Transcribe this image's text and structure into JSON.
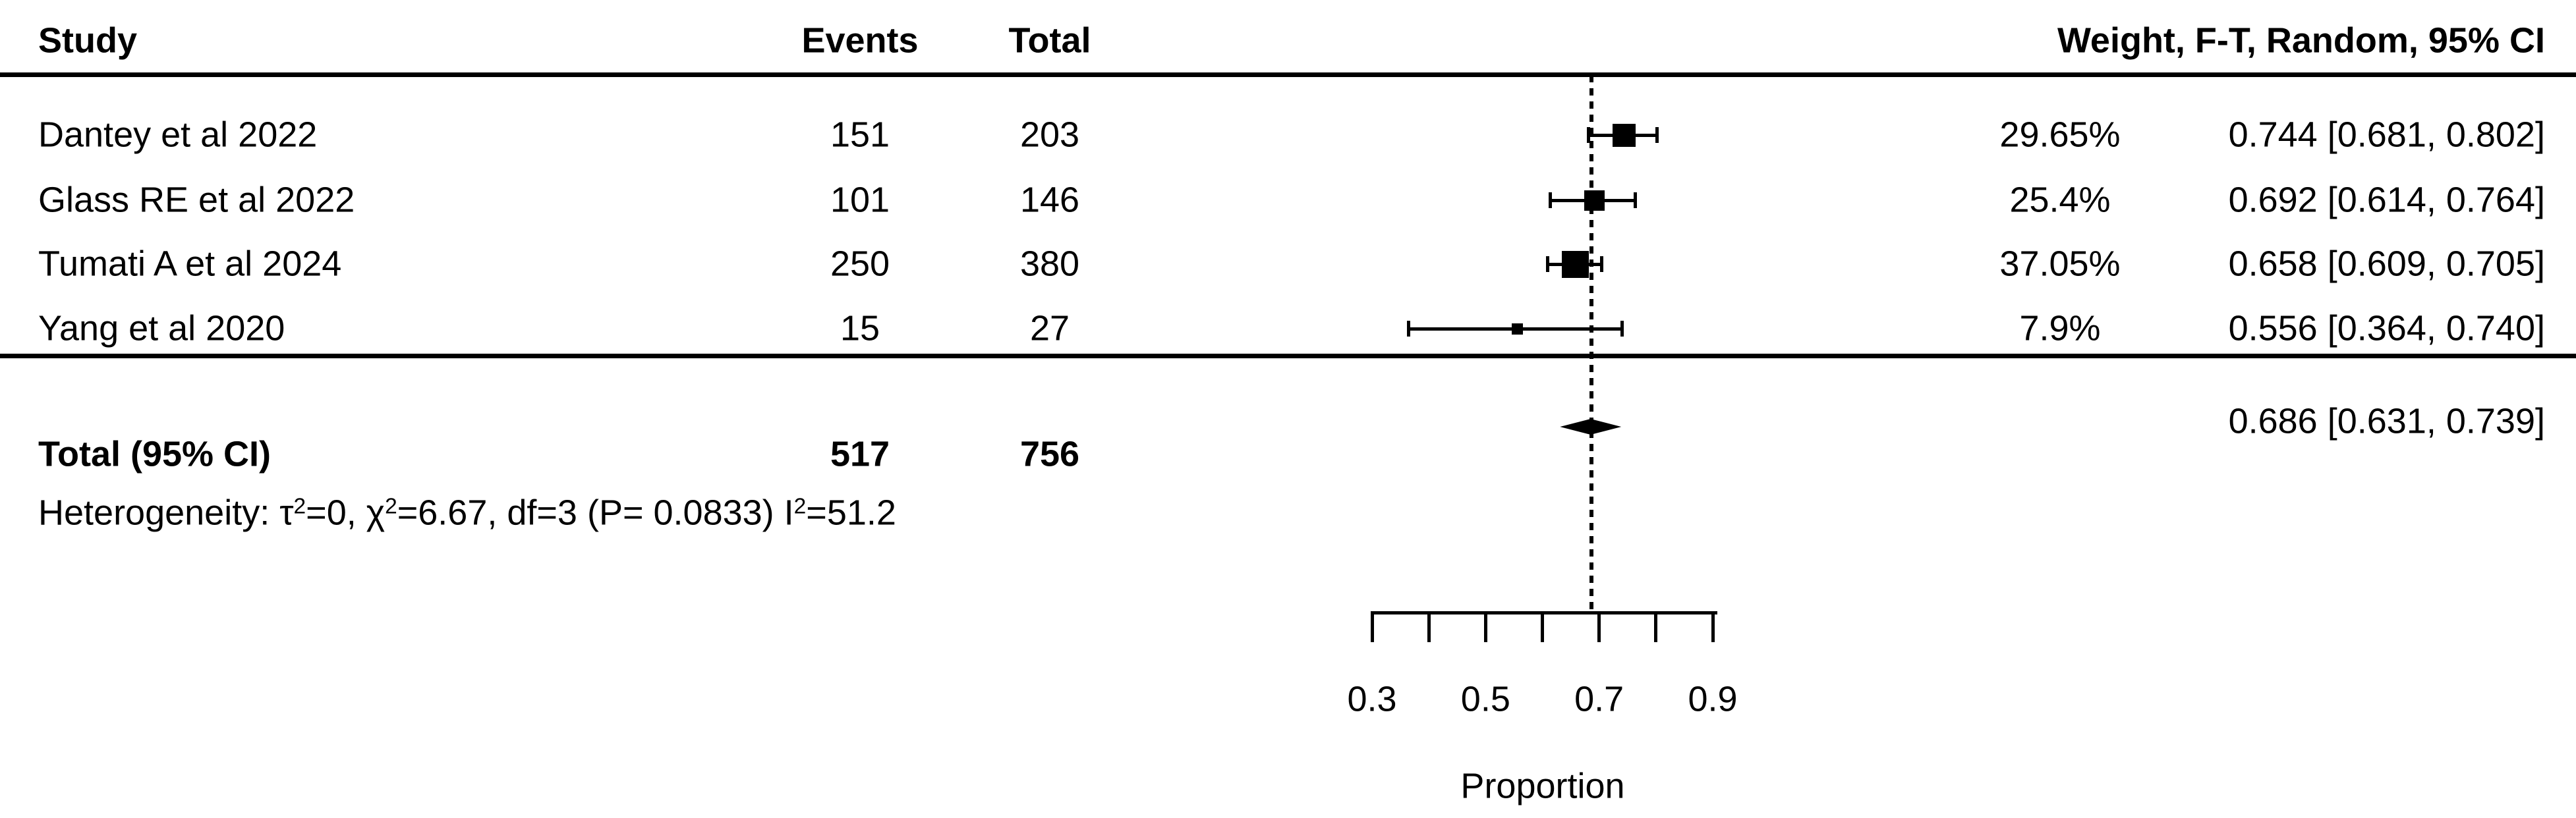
{
  "columns": {
    "study": "Study",
    "events": "Events",
    "total": "Total",
    "weight_ci": "Weight, F-T, Random, 95% CI"
  },
  "chart_data": {
    "type": "forest",
    "xlabel": "Proportion",
    "axis": {
      "min": 0.3,
      "max": 0.9,
      "tick_step": 0.1,
      "labeled_ticks": [
        0.3,
        0.5,
        0.7,
        0.9
      ],
      "tick_labels": [
        "0.3",
        "0.5",
        "0.7",
        "0.9"
      ]
    },
    "studies": [
      {
        "study": "Dantey et al 2022",
        "events": 151,
        "total": 203,
        "weight_pct": 29.65,
        "weight_label": "29.65%",
        "estimate": 0.744,
        "ci_low": 0.681,
        "ci_high": 0.802,
        "ci_label": "0.744 [0.681, 0.802]"
      },
      {
        "study": "Glass RE et al 2022",
        "events": 101,
        "total": 146,
        "weight_pct": 25.4,
        "weight_label": "25.4%",
        "estimate": 0.692,
        "ci_low": 0.614,
        "ci_high": 0.764,
        "ci_label": "0.692 [0.614, 0.764]"
      },
      {
        "study": "Tumati A et al 2024",
        "events": 250,
        "total": 380,
        "weight_pct": 37.05,
        "weight_label": "37.05%",
        "estimate": 0.658,
        "ci_low": 0.609,
        "ci_high": 0.705,
        "ci_label": "0.658 [0.609, 0.705]"
      },
      {
        "study": "Yang et al 2020",
        "events": 15,
        "total": 27,
        "weight_pct": 7.9,
        "weight_label": "7.9%",
        "estimate": 0.556,
        "ci_low": 0.364,
        "ci_high": 0.74,
        "ci_label": "0.556 [0.364, 0.740]"
      }
    ],
    "pooled": {
      "label": "Total (95% CI)",
      "events": 517,
      "total": 756,
      "estimate": 0.686,
      "ci_low": 0.631,
      "ci_high": 0.739,
      "ci_label": "0.686 [0.631, 0.739]"
    },
    "heterogeneity": "Heterogeneity: τ²=0, χ²=6.67, df=3 (P= 0.0833) I²=51.2"
  }
}
